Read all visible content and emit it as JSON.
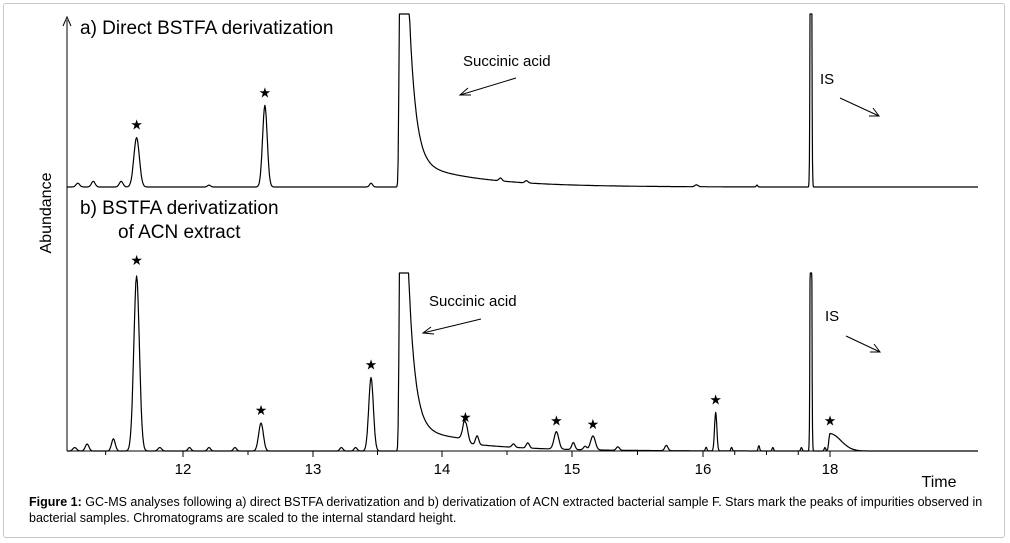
{
  "chart_data": {
    "type": "line",
    "ylabel": "Abundance",
    "xlabel": "Time",
    "xlim": [
      11.25,
      18.25
    ],
    "x_ticks": [
      12,
      13,
      14,
      15,
      16,
      18
    ],
    "grid": false,
    "legend": "none",
    "annotations": {
      "succinic_acid": "Succinic acid",
      "internal_standard": "IS",
      "impurity_marker": "★"
    },
    "series": [
      {
        "name": "a) Direct BSTFA derivatization",
        "succinic_peak_x": 13.68,
        "is_peak_x": 17.7,
        "starred_peaks": [
          {
            "x": 11.7,
            "y": 0.26
          },
          {
            "x": 12.63,
            "y": 0.43
          }
        ],
        "minor_peaks": [
          {
            "x": 11.32,
            "y": 0.02
          },
          {
            "x": 11.42,
            "y": 0.03
          },
          {
            "x": 11.6,
            "y": 0.03
          },
          {
            "x": 12.2,
            "y": 0.01
          },
          {
            "x": 13.45,
            "y": 0.02
          },
          {
            "x": 14.45,
            "y": 0.015
          },
          {
            "x": 14.65,
            "y": 0.012
          },
          {
            "x": 15.95,
            "y": 0.01
          },
          {
            "x": 16.85,
            "y": 0.01
          }
        ]
      },
      {
        "name": "b) BSTFA derivatization of ACN extract",
        "name_line1": "b) BSTFA derivatization",
        "name_line2": "of ACN extract",
        "succinic_peak_x": 13.68,
        "is_peak_x": 17.7,
        "starred_peaks": [
          {
            "x": 11.7,
            "y": 1.0
          },
          {
            "x": 12.6,
            "y": 0.16
          },
          {
            "x": 13.45,
            "y": 0.42
          },
          {
            "x": 14.18,
            "y": 0.12
          },
          {
            "x": 14.88,
            "y": 0.1
          },
          {
            "x": 15.16,
            "y": 0.08
          },
          {
            "x": 16.2,
            "y": 0.22
          },
          {
            "x": 18.0,
            "y": 0.1
          }
        ],
        "minor_peaks": [
          {
            "x": 11.3,
            "y": 0.02
          },
          {
            "x": 11.38,
            "y": 0.04
          },
          {
            "x": 11.55,
            "y": 0.07
          },
          {
            "x": 11.85,
            "y": 0.02
          },
          {
            "x": 12.05,
            "y": 0.02
          },
          {
            "x": 12.2,
            "y": 0.02
          },
          {
            "x": 12.4,
            "y": 0.02
          },
          {
            "x": 13.22,
            "y": 0.02
          },
          {
            "x": 13.33,
            "y": 0.02
          },
          {
            "x": 14.27,
            "y": 0.05
          },
          {
            "x": 14.55,
            "y": 0.02
          },
          {
            "x": 14.66,
            "y": 0.03
          },
          {
            "x": 15.01,
            "y": 0.04
          },
          {
            "x": 15.1,
            "y": 0.02
          },
          {
            "x": 15.35,
            "y": 0.02
          },
          {
            "x": 15.72,
            "y": 0.03
          },
          {
            "x": 16.05,
            "y": 0.02
          },
          {
            "x": 16.45,
            "y": 0.02
          },
          {
            "x": 16.88,
            "y": 0.03
          },
          {
            "x": 17.1,
            "y": 0.02
          },
          {
            "x": 17.55,
            "y": 0.02
          },
          {
            "x": 17.92,
            "y": 0.02
          }
        ]
      }
    ]
  },
  "caption": {
    "label": "Figure 1:",
    "text": "GC-MS analyses following a) direct BSTFA derivatization and b) derivatization of ACN extracted bacterial sample F. Stars mark the peaks of impurities observed in bacterial samples. Chromatograms are scaled to the internal standard height."
  },
  "colors": {
    "trace": "#000000",
    "frame": "#c8c8c8",
    "background": "#ffffff"
  }
}
